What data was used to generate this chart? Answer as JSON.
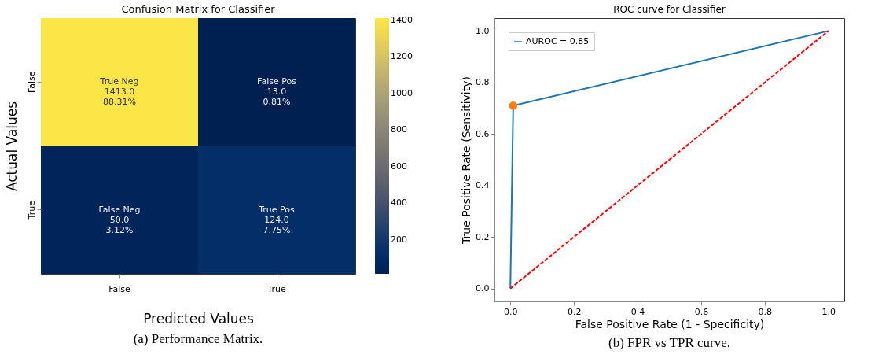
{
  "chart_data": [
    {
      "type": "heatmap",
      "title": "Confusion Matrix for Classifier",
      "xlabel": "Predicted Values",
      "ylabel": "Actual Values",
      "categories": [
        "False",
        "True"
      ],
      "y_categories": [
        "False",
        "True"
      ],
      "cells": [
        [
          1413,
          13
        ],
        [
          50,
          124
        ]
      ],
      "cell_labels": [
        [
          "True Neg\n1413.0\n88.31%",
          "False Pos\n13.0\n0.81%"
        ],
        [
          "False Neg\n50.0\n3.12%",
          "True Pos\n124.0\n7.75%"
        ]
      ],
      "clim": [
        13,
        1413
      ],
      "cticks": [
        200,
        400,
        600,
        800,
        1000,
        1200,
        1400
      ],
      "annotations": [
        "(a) Performance Matrix."
      ]
    },
    {
      "type": "line",
      "title": "ROC curve for Classifier",
      "xlabel": "False Positive Rate (1 - Specificity)",
      "ylabel": "True Positive Rate (Sensitivity)",
      "series": [
        {
          "name": "AUROC = 0.85",
          "type": "line",
          "color": "#1f77b4",
          "x": [
            0,
            0.009,
            1
          ],
          "values": [
            0,
            0.71,
            1
          ]
        },
        {
          "type": "line",
          "color": "#ff0000",
          "line_style": "dashed",
          "x": [
            0,
            1
          ],
          "values": [
            0,
            1
          ]
        },
        {
          "type": "scatter",
          "color": "#ff7f0e",
          "marker": "circle",
          "x": [
            0.009
          ],
          "values": [
            0.71
          ]
        }
      ],
      "xlim": [
        -0.05,
        1.05
      ],
      "ylim": [
        -0.05,
        1.05
      ],
      "xticks": [
        {
          "value": 0,
          "label": "0.0"
        },
        {
          "value": 0.2,
          "label": "0.2"
        },
        {
          "value": 0.4,
          "label": "0.4"
        },
        {
          "value": 0.6,
          "label": "0.6"
        },
        {
          "value": 0.8,
          "label": "0.8"
        },
        {
          "value": 1,
          "label": "1.0"
        }
      ],
      "yticks": [
        {
          "value": 0,
          "label": "0.0"
        },
        {
          "value": 0.2,
          "label": "0.2"
        },
        {
          "value": 0.4,
          "label": "0.4"
        },
        {
          "value": 0.6,
          "label": "0.6"
        },
        {
          "value": 0.8,
          "label": "0.8"
        },
        {
          "value": 1,
          "label": "1.0"
        }
      ],
      "grid": false,
      "legend": "top left",
      "annotations": [
        "(b) FPR vs TPR curve."
      ]
    }
  ]
}
